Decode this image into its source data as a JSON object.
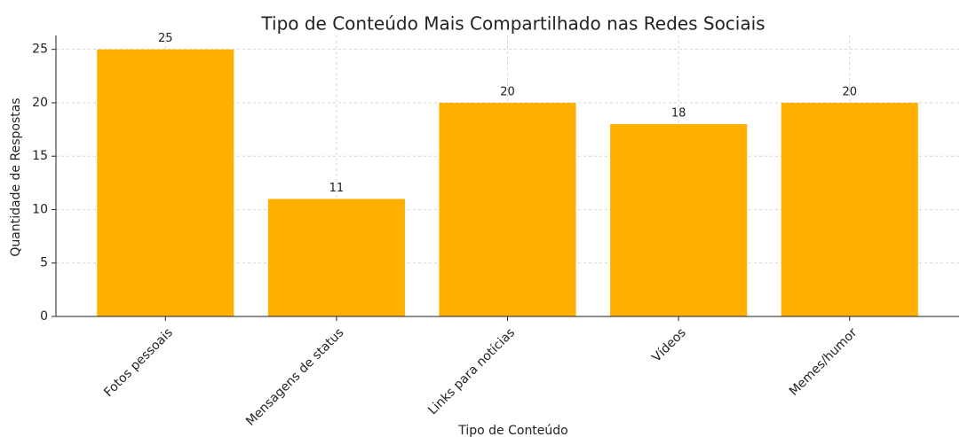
{
  "chart_data": {
    "type": "bar",
    "title": "Tipo de Conteúdo Mais Compartilhado nas Redes Sociais",
    "x_label": "Tipo de Conteúdo",
    "y_label": "Quantidade de Respostas",
    "categories": [
      "Fotos pessoais",
      "Mensagens de status",
      "Links para notícias",
      "Vídeos",
      "Memes/humor"
    ],
    "values": [
      25,
      11,
      20,
      18,
      20
    ],
    "color": "#ffb000",
    "ylim": [
      0,
      26.3
    ],
    "yticks": [
      0,
      5,
      10,
      15,
      20,
      25
    ],
    "grid": true
  }
}
